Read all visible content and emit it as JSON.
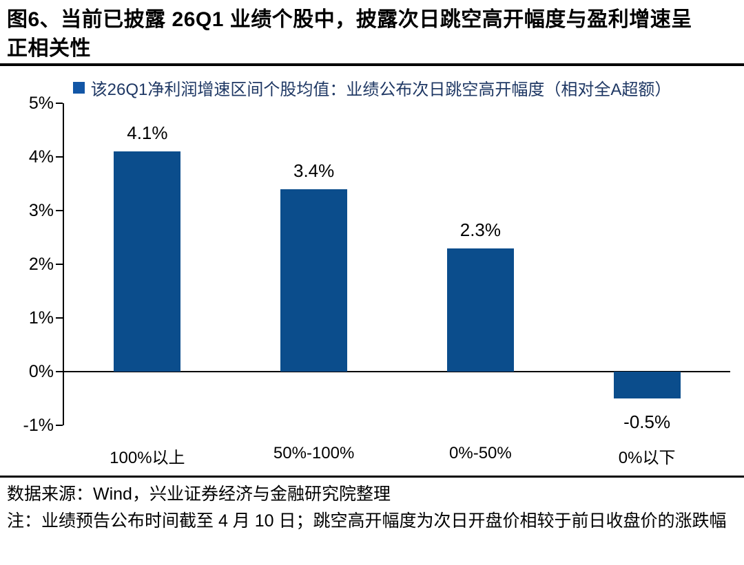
{
  "figure": {
    "title": "图6、当前已披露 26Q1 业绩个股中，披露次日跳空高开幅度与盈利增速呈正相关性"
  },
  "legend": {
    "label": "该26Q1净利润增速区间个股均值：业绩公布次日跳空高开幅度（相对全A超额）",
    "marker_color": "#1256A6"
  },
  "chart_data": {
    "type": "bar",
    "title": "该26Q1净利润增速区间个股均值：业绩公布次日跳空高开幅度（相对全A超额）",
    "categories": [
      "100%以上",
      "50%-100%",
      "0%-50%",
      "0%以下"
    ],
    "values": [
      4.1,
      3.4,
      2.3,
      -0.5
    ],
    "data_labels": [
      "4.1%",
      "3.4%",
      "2.3%",
      "-0.5%"
    ],
    "xlabel": "",
    "ylabel": "",
    "ylim": [
      -1,
      5
    ],
    "yticks": [
      "5%",
      "4%",
      "3%",
      "2%",
      "1%",
      "0%",
      "-1%"
    ],
    "grid": false,
    "legend_position": "top",
    "bar_color": "#0B4D8C",
    "axis_color": "#000000"
  },
  "footer": {
    "source": "数据来源：Wind，兴业证券经济与金融研究院整理",
    "note": "注：业绩预告公布时间截至 4 月 10 日；跳空高开幅度为次日开盘价相较于前日收盘价的涨跌幅"
  }
}
